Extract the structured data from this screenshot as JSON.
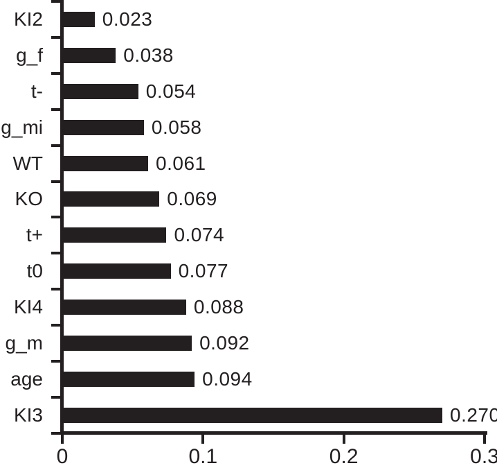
{
  "chart_data": {
    "type": "bar",
    "orientation": "horizontal",
    "title": "",
    "xlabel": "",
    "ylabel": "",
    "categories": [
      "KI2",
      "g_f",
      "t-",
      "g_mi",
      "WT",
      "KO",
      "t+",
      "t0",
      "KI4",
      "g_m",
      "age",
      "KI3"
    ],
    "values": [
      0.023,
      0.038,
      0.054,
      0.058,
      0.061,
      0.069,
      0.074,
      0.077,
      0.088,
      0.092,
      0.094,
      0.27
    ],
    "value_labels": [
      "0.023",
      "0.038",
      "0.054",
      "0.058",
      "0.061",
      "0.069",
      "0.074",
      "0.077",
      "0.088",
      "0.092",
      "0.094",
      "0.270"
    ],
    "xlim": [
      0,
      0.3
    ],
    "x_ticks": [
      {
        "value": 0.0,
        "label": "0"
      },
      {
        "value": 0.1,
        "label": "0.1"
      },
      {
        "value": 0.2,
        "label": "0.2"
      },
      {
        "value": 0.3,
        "label": "0.3"
      }
    ],
    "grid": false,
    "legend": false,
    "bar_color": "#231f20",
    "axis_color": "#231f20",
    "text_color": "#231f20",
    "background": "#ffffff"
  }
}
